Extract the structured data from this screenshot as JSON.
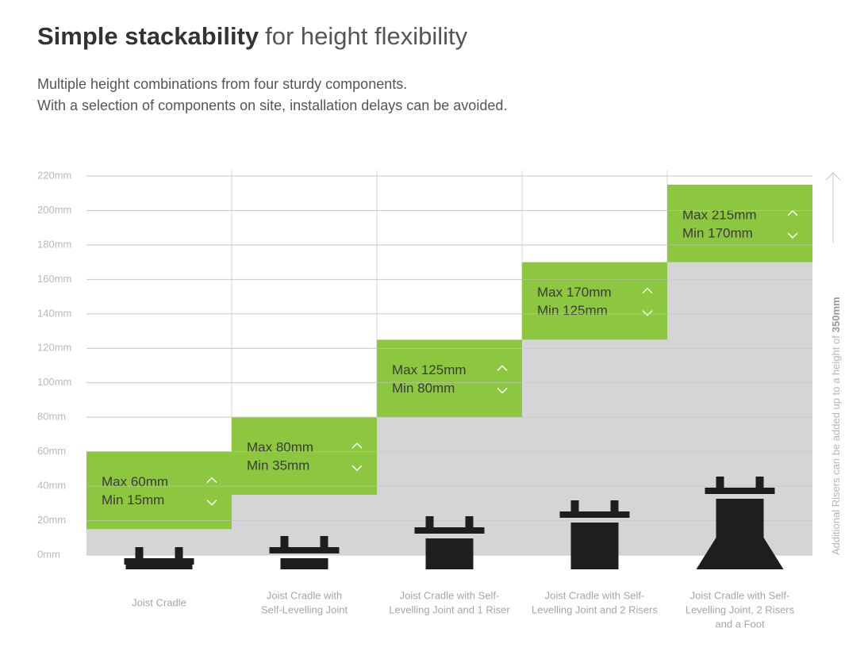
{
  "chart_data": {
    "type": "range",
    "title_bold": "Simple stackability",
    "title_light": "for height flexibility",
    "subtitle": [
      "Multiple height combinations from four sturdy components.",
      "With a selection of components on site, installation delays can be avoided."
    ],
    "categories": [
      [
        "Joist Cradle"
      ],
      [
        "Joist Cradle with",
        "Self-Levelling Joint"
      ],
      [
        "Joist Cradle with Self-",
        "Levelling Joint and 1 Riser"
      ],
      [
        "Joist Cradle with Self-",
        "Levelling Joint and 2 Risers"
      ],
      [
        "Joist Cradle with Self-",
        "Levelling Joint, 2 Risers",
        "and a Foot"
      ]
    ],
    "max": {
      "values": [
        60,
        80,
        125,
        170,
        215
      ],
      "value_labels": [
        "Max 60mm",
        "Max 80mm",
        "Max 125mm",
        "Max 170mm",
        "Max 215mm"
      ],
      "color": "#8dc63f"
    },
    "min": {
      "values": [
        15,
        35,
        80,
        125,
        170
      ],
      "value_labels": [
        "Min 15mm",
        "Min 35mm",
        "Min 80mm",
        "Min 125mm",
        "Min 170mm"
      ],
      "color": "#d5d5d7"
    },
    "ylim": [
      0,
      220
    ],
    "yticks": [
      {
        "value": 0,
        "label": "0mm"
      },
      {
        "value": 20,
        "label": "20mm"
      },
      {
        "value": 40,
        "label": "40mm"
      },
      {
        "value": 60,
        "label": "60mm"
      },
      {
        "value": 80,
        "label": "80mm"
      },
      {
        "value": 100,
        "label": "100mm"
      },
      {
        "value": 120,
        "label": "120mm"
      },
      {
        "value": 140,
        "label": "140mm"
      },
      {
        "value": 160,
        "label": "160mm"
      },
      {
        "value": 180,
        "label": "180mm"
      },
      {
        "value": 200,
        "label": "200mm"
      },
      {
        "value": 220,
        "label": "220mm"
      }
    ],
    "grid": true,
    "side_note": {
      "text": "Additional Risers can be added up to a height of",
      "emphasis": "350mm"
    }
  }
}
